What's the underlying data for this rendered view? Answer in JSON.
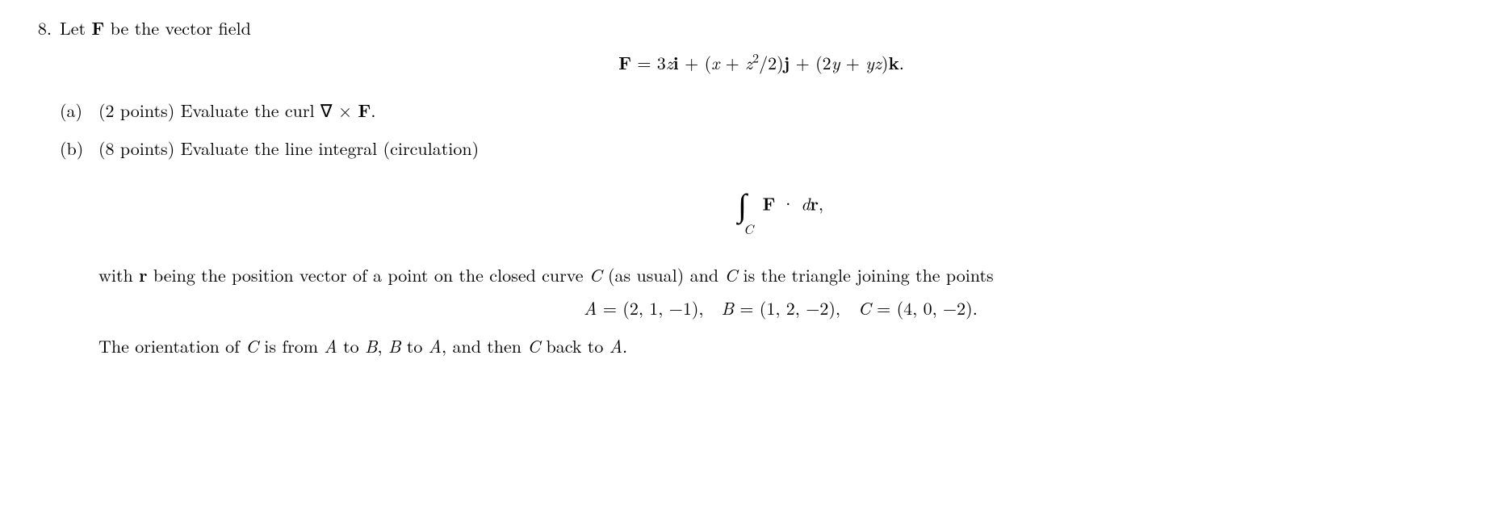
{
  "problem": {
    "number": "8.",
    "intro_prefix": "Let ",
    "intro_F": "F",
    "intro_suffix": " be the vector field",
    "vector_field_html": "<span class=\"bold\">F</span> = 3<span class=\"italic\">z</span><span class=\"bold\">i</span> + (<span class=\"italic\">x</span> + <span class=\"italic\">z</span><span class=\"sup\">2</span>/2)<span class=\"bold\">j</span> + (2<span class=\"italic\">y</span> + <span class=\"italic\">yz</span>)<span class=\"bold\">k</span>.",
    "parts": {
      "a": {
        "label": "(a)",
        "points": "(2 points)",
        "text_prefix": " Evaluate the curl ",
        "curl_html": "∇ × <span class=\"bold\">F</span>.",
        "text_suffix": ""
      },
      "b": {
        "label": "(b)",
        "points": "(8 points)",
        "text": " Evaluate the line integral (circulation)",
        "integral_sub": "C",
        "integral_body_html": "<span class=\"bold\">F</span> · <span class=\"italic\">d</span><span class=\"bold\">r</span>,",
        "para1_html": "with <span class=\"bold\">r</span> being the position vector of a point on the closed curve <span class=\"italic\">C</span> (as usual) and <span class=\"italic\">C</span> is the triangle joining the points",
        "points_eq_html": "<span class=\"italic\">A</span> = (2, 1, −1),&nbsp;&nbsp;<span class=\"italic\">B</span> = (1, 2, −2),&nbsp;&nbsp;<span class=\"italic\">C</span> = (4, 0, −2).",
        "para2_html": "The orientation of <span class=\"italic\">C</span> is from <span class=\"italic\">A</span> to <span class=\"italic\">B</span>, <span class=\"italic\">B</span> to <span class=\"italic\">A</span>, and then <span class=\"italic\">C</span> back to <span class=\"italic\">A</span>."
      }
    }
  }
}
